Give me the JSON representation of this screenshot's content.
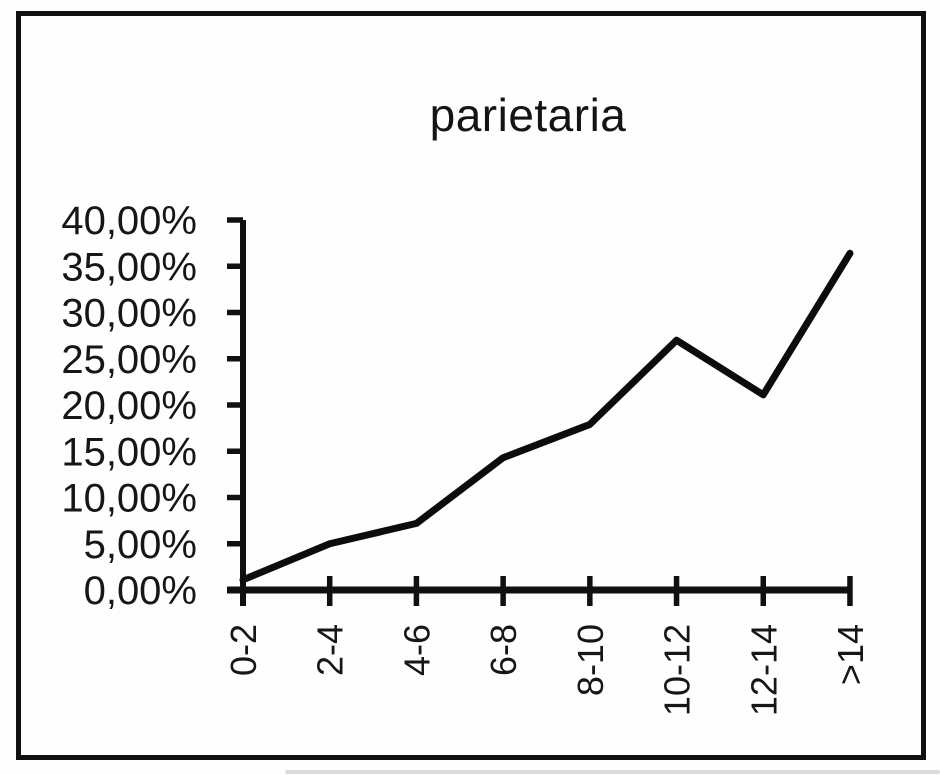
{
  "chart_data": {
    "type": "line",
    "title": "parietaria",
    "categories": [
      "0-2",
      "2-4",
      "4-6",
      "6-8",
      "8-10",
      "10-12",
      "12-14",
      ">14"
    ],
    "values": [
      1.1,
      5.0,
      7.2,
      14.3,
      17.9,
      27.0,
      21.1,
      36.4
    ],
    "unit": "%",
    "decimal_separator": ",",
    "xlabel": "",
    "ylabel": "",
    "ylim": [
      0,
      40
    ],
    "ytick_step": 5,
    "ytick_labels": [
      "0,00%",
      "5,00%",
      "10,00%",
      "15,00%",
      "20,00%",
      "25,00%",
      "30,00%",
      "35,00%",
      "40,00%"
    ],
    "grid": false,
    "legend": "none",
    "x_tick_label_rotation_deg": -90,
    "line_color": "#0c0c0c",
    "ink_color": "#101010",
    "text_color": "#161616",
    "background_color": "#fefefe"
  }
}
